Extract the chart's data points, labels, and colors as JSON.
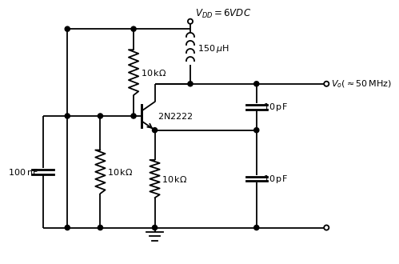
{
  "background": "#ffffff",
  "line_color": "#000000",
  "line_width": 1.3,
  "vdd_label": "$V_{DD} = 6VDC$",
  "vo_label": "$V_o(\\approx 50\\,\\mathrm{MHz})$",
  "r1_label": "$10\\,\\mathrm{k\\Omega}$",
  "r2_label": "$10\\,\\mathrm{k\\Omega}$",
  "re_label": "$10\\,\\mathrm{k\\Omega}$",
  "c_bypass_label": "$100\\,\\mathrm{nF}$",
  "c1_label": "$10\\,\\mathrm{pF}$",
  "c2_label": "$10\\,\\mathrm{pF}$",
  "l_label": "$150\\,\\mu\\mathrm{H}$",
  "tr_label": "$2\\mathrm{N}2222$"
}
